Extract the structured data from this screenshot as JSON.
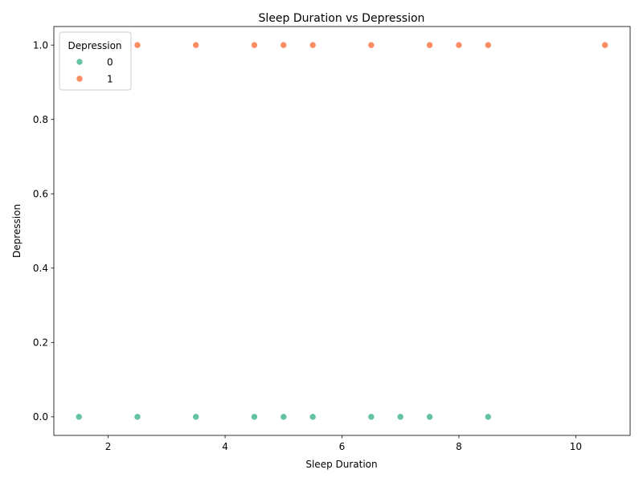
{
  "chart_data": {
    "type": "scatter",
    "title": "Sleep Duration vs Depression",
    "xlabel": "Sleep Duration",
    "ylabel": "Depression",
    "xlim": [
      1.07,
      10.93
    ],
    "ylim": [
      -0.05,
      1.05
    ],
    "xticks": [
      2,
      4,
      6,
      8,
      10
    ],
    "yticks": [
      0.0,
      0.2,
      0.4,
      0.6,
      0.8,
      1.0
    ],
    "xtick_labels": [
      "2",
      "4",
      "6",
      "8",
      "10"
    ],
    "ytick_labels": [
      "0.0",
      "0.2",
      "0.4",
      "0.6",
      "0.8",
      "1.0"
    ],
    "grid": false,
    "legend": {
      "title": "Depression",
      "placement": "top-left"
    },
    "series": [
      {
        "name": "0",
        "color": "#66c2a5",
        "x": [
          1.5,
          2.5,
          3.5,
          4.5,
          5.0,
          5.5,
          6.5,
          7.0,
          7.5,
          8.5
        ],
        "y": [
          0,
          0,
          0,
          0,
          0,
          0,
          0,
          0,
          0,
          0
        ]
      },
      {
        "name": "1",
        "color": "#fc8d62",
        "x": [
          2.5,
          3.5,
          4.5,
          5.0,
          5.5,
          6.5,
          7.5,
          8.0,
          8.5,
          10.5
        ],
        "y": [
          1,
          1,
          1,
          1,
          1,
          1,
          1,
          1,
          1,
          1
        ]
      }
    ]
  }
}
